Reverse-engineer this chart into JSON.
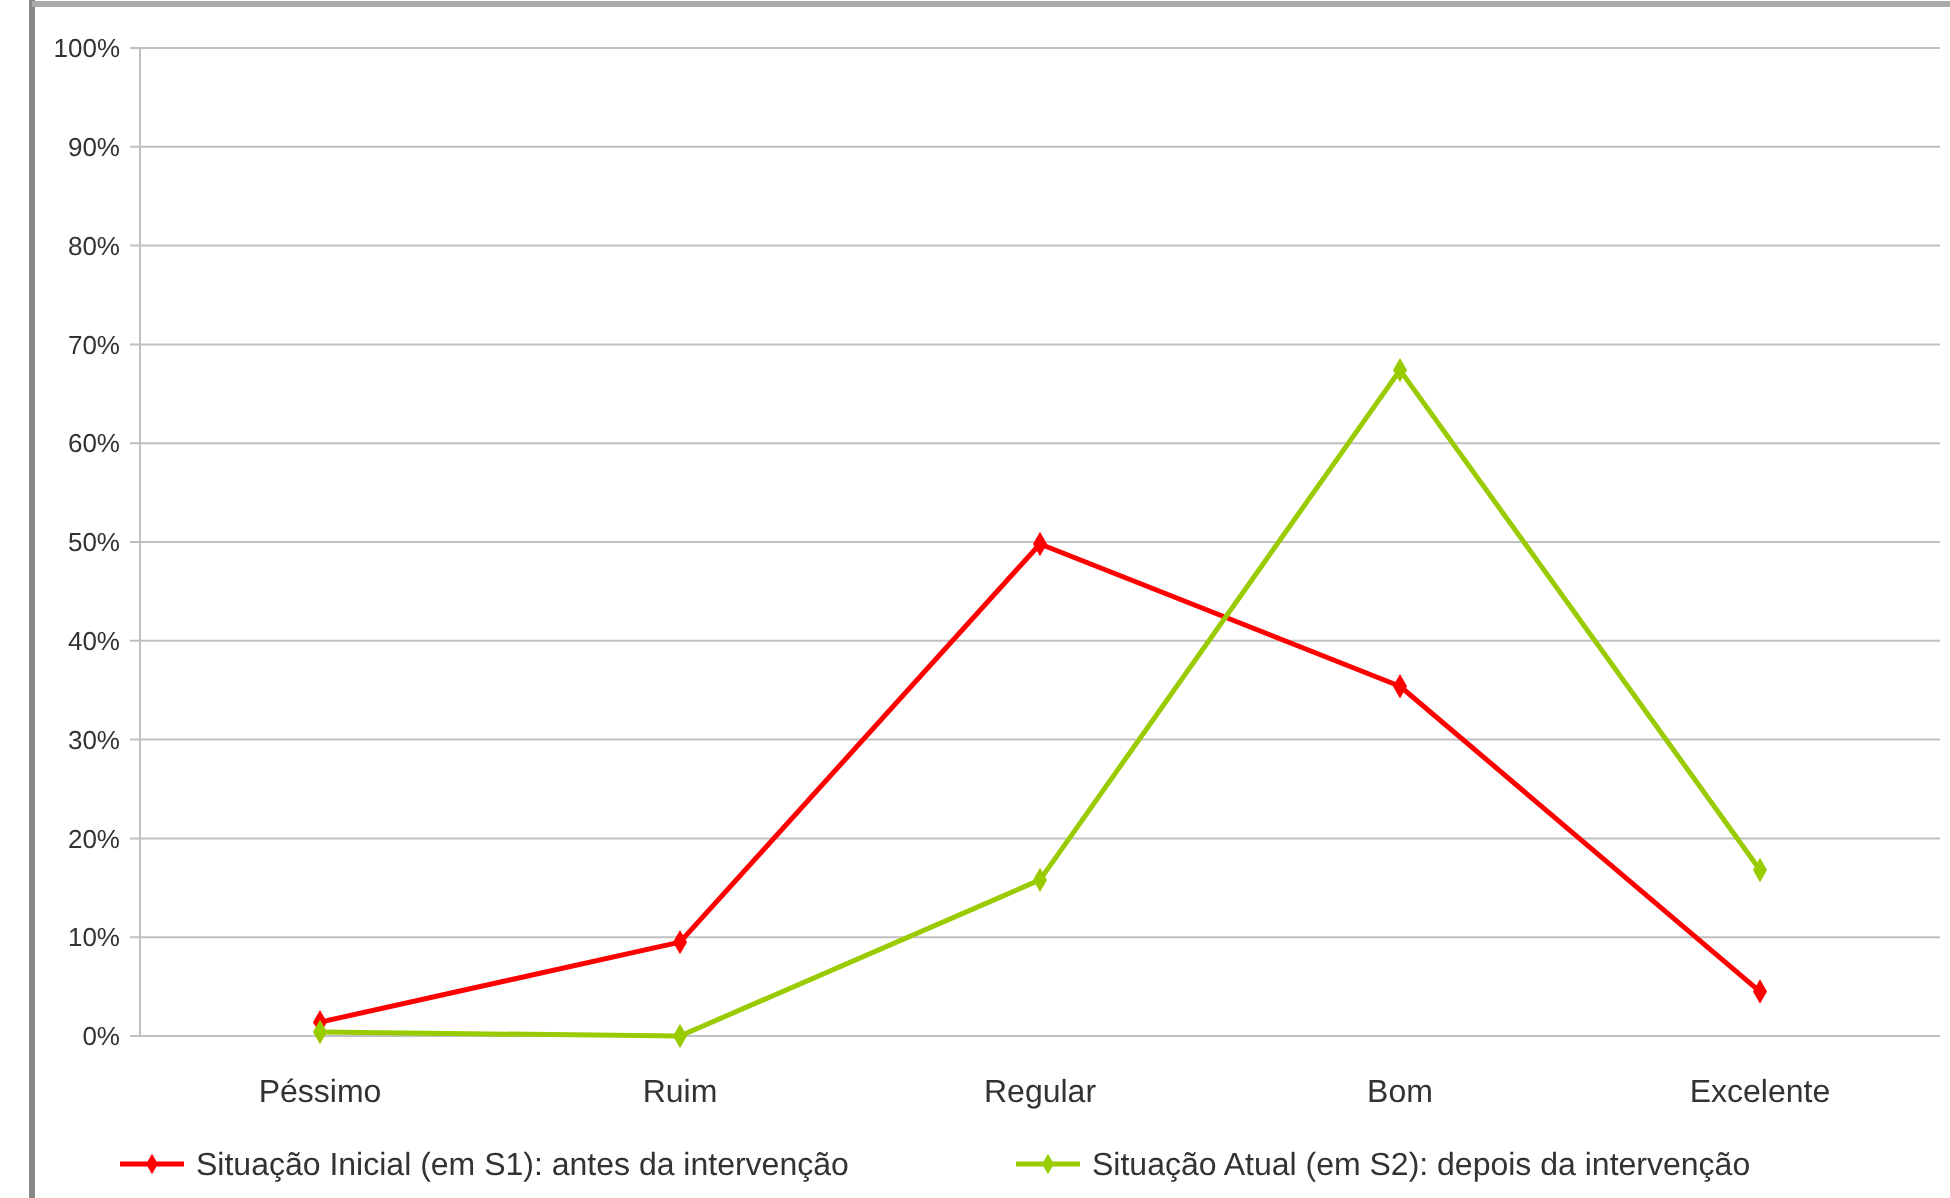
{
  "chart_data": {
    "type": "line",
    "categories": [
      "Péssimo",
      "Ruim",
      "Regular",
      "Bom",
      "Excelente"
    ],
    "series": [
      {
        "name": "Situação Inicial (em S1): antes da intervenção",
        "color": "#ff0000",
        "values": [
          1.4,
          9.5,
          49.8,
          35.4,
          4.5
        ]
      },
      {
        "name": "Situação Atual (em S2): depois da intervenção",
        "color": "#99cc00",
        "values": [
          0.4,
          0,
          15.8,
          67.4,
          16.8
        ]
      }
    ],
    "ylim": [
      0,
      100
    ],
    "yticks": [
      {
        "value": 0,
        "label": "0%"
      },
      {
        "value": 10,
        "label": "10%"
      },
      {
        "value": 20,
        "label": "20%"
      },
      {
        "value": 30,
        "label": "30%"
      },
      {
        "value": 40,
        "label": "40%"
      },
      {
        "value": 50,
        "label": "50%"
      },
      {
        "value": 60,
        "label": "60%"
      },
      {
        "value": 70,
        "label": "70%"
      },
      {
        "value": 80,
        "label": "80%"
      },
      {
        "value": 90,
        "label": "90%"
      },
      {
        "value": 100,
        "label": "100%"
      }
    ],
    "grid": "y",
    "legend": "bottom",
    "marker": "diamond",
    "line_style": "solid"
  }
}
